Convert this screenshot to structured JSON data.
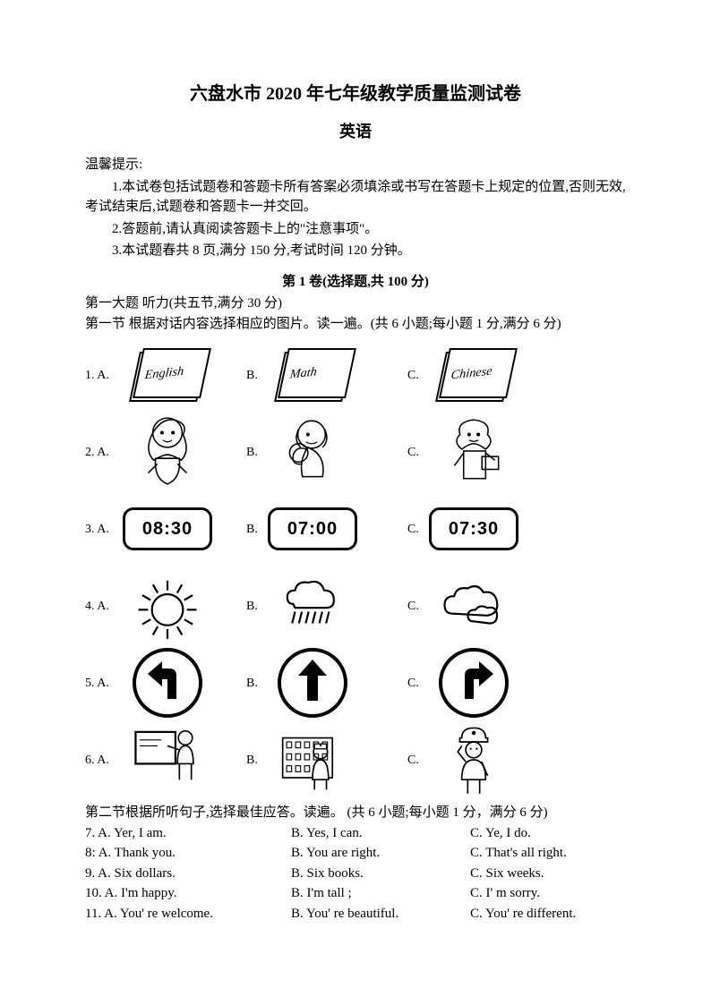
{
  "title": "六盘水市 2020 年七年级教学质量监测试卷",
  "subject": "英语",
  "tips": {
    "label": "温馨提示:",
    "line1": "1.本试卷包括试题卷和答题卡所有答案必须填涂或书写在答题卡上规定的位置,否则无效,考试结束后,试题卷和答题卡一并交回。",
    "line2": "2.答题前,请认真阅读答题卡上的\"注意事项\"。",
    "line3": "3.本试题春共 8 页,满分 150 分,考试时间 120 分钟。"
  },
  "part1_header": "第 1 卷(选择题,共 100 分)",
  "sec_listen": "第一大题  听力(共五节,满分 30 分)",
  "sec1": "第一节   根据对话内容选择相应的图片。读一遍。(共 6 小题;每小题 1 分,满分 6 分)",
  "pic_rows": [
    {
      "n": "1.",
      "a": "A.",
      "b": "B.",
      "c": "C.",
      "kind": "book",
      "labels": [
        "English",
        "Math",
        "Chinese"
      ]
    },
    {
      "n": "2.",
      "a": "A.",
      "b": "B.",
      "c": "C.",
      "kind": "girl",
      "labels": [
        "",
        "",
        ""
      ]
    },
    {
      "n": "3.",
      "a": "A.",
      "b": "B.",
      "c": "C.",
      "kind": "clock",
      "labels": [
        "08:30",
        "07:00",
        "07:30"
      ]
    },
    {
      "n": "4.",
      "a": "A.",
      "b": "B.",
      "c": "C.",
      "kind": "weather",
      "labels": [
        "sun",
        "rain",
        "cloud"
      ]
    },
    {
      "n": "5.",
      "a": "A.",
      "b": "B.",
      "c": "C.",
      "kind": "arrow",
      "labels": [
        "left",
        "up",
        "right"
      ]
    },
    {
      "n": "6.",
      "a": "A.",
      "b": "B.",
      "c": "C.",
      "kind": "job",
      "labels": [
        "teacher",
        "doctor",
        "officer"
      ]
    }
  ],
  "sec2": "第二节根据所听句子,选择最佳应答。读遍。  (共 6 小题;每小题 1 分，满分 6 分)",
  "q2": [
    {
      "n": "7.",
      "a": "A. Yer, I am.",
      "b": "B. Yes, I can.",
      "c": "C. Ye, I do."
    },
    {
      "n": "8:",
      "a": "A. Thank you.",
      "b": "B. You are right.",
      "c": "C. That's all right."
    },
    {
      "n": "9.",
      "a": "A. Six dollars.",
      "b": "B. Six books.",
      "c": "C. Six weeks."
    },
    {
      "n": "10.",
      "a": "A. I'm happy.",
      "b": "B. I'm tall ;",
      "c": "C. I' m sorry."
    },
    {
      "n": "11.",
      "a": "A. You' re welcome.",
      "b": "B. You' re beautiful.",
      "c": "C. You' re different."
    }
  ],
  "svg": {
    "girl1_color": "#000",
    "stroke": "#000000",
    "fill": "#ffffff"
  }
}
